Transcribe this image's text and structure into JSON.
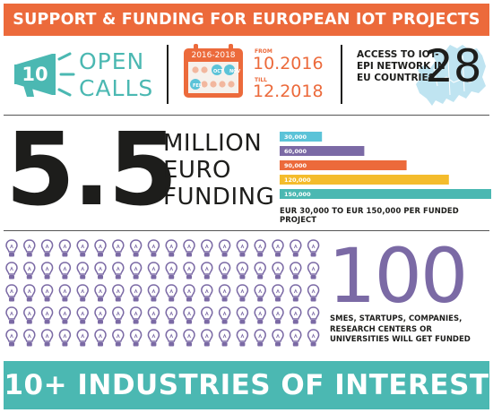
{
  "top_banner": {
    "title": "SUPPORT & FUNDING FOR EUROPEAN IOT PROJECTS"
  },
  "open_calls": {
    "number": "10",
    "line1": "OPEN",
    "line2": "CALLS",
    "icon": "megaphone-icon"
  },
  "calendar": {
    "year_range": "2016-2018",
    "pills": [
      "OCT",
      "NOV",
      "FEB"
    ],
    "from_label": "FROM",
    "from_date": "10.2016",
    "till_label": "TILL",
    "till_date": "12.2018"
  },
  "network": {
    "text": "ACCESS TO IOT-EPI NETWORK IN EU COUNTRIES",
    "number": "28",
    "icon": "europe-map-icon"
  },
  "funding": {
    "big": "5.5",
    "words": [
      "MILLION",
      "EURO",
      "FUNDING"
    ],
    "caption": "EUR 30,000 TO EUR 150,000 PER FUNDED PROJECT"
  },
  "chart_data": {
    "type": "bar",
    "orientation": "horizontal",
    "categories": [
      "30,000",
      "60,000",
      "90,000",
      "120,000",
      "150,000"
    ],
    "values": [
      30000,
      60000,
      90000,
      120000,
      150000
    ],
    "colors": [
      "#5bc3d8",
      "#7b6aa5",
      "#ec6a3b",
      "#f4bc2c",
      "#4bb8b2"
    ],
    "xlim": [
      0,
      150000
    ]
  },
  "bulbs": {
    "rows": 5,
    "cols": 18,
    "color": "#7b6aa5",
    "icon": "light-bulb-icon"
  },
  "smes": {
    "number": "100",
    "text": "SMES, STARTUPS, COMPANIES, RESEARCH CENTERS OR UNIVERSITIES WILL GET FUNDED"
  },
  "bottom_banner": {
    "title": "10+ INDUSTRIES OF INTEREST"
  },
  "colors": {
    "orange": "#ec6a3b",
    "teal": "#4bb8b2",
    "purple": "#7b6aa5",
    "dark": "#1d1d1b"
  }
}
